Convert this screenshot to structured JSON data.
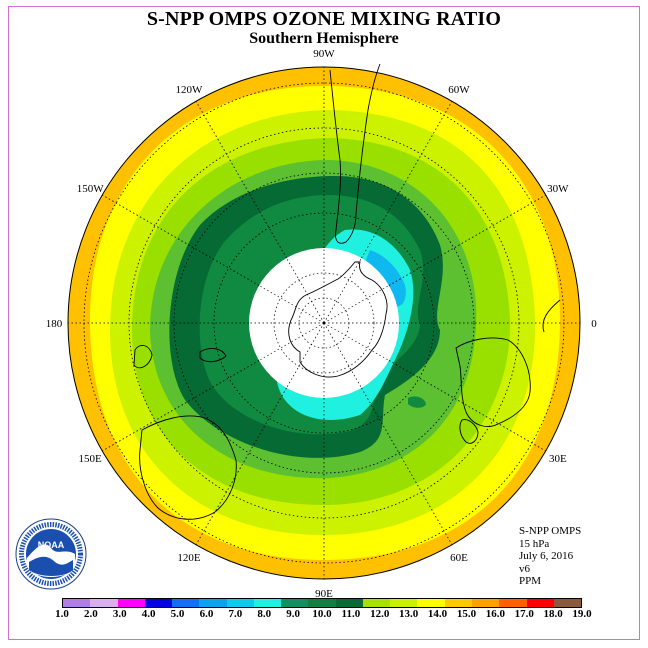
{
  "title": "S-NPP OMPS OZONE MIXING RATIO",
  "subtitle": "Southern Hemisphere",
  "info": {
    "instrument": "S-NPP OMPS",
    "pressure": "15 hPa",
    "date": "July 6, 2016",
    "version": "v6",
    "units": "PPM"
  },
  "logo": {
    "name": "NOAA",
    "icon": "noaa-logo-icon",
    "ring_text": "NATIONAL OCEANIC AND ATMOSPHERIC ADMINISTRATION · U.S. DEPARTMENT OF COMMERCE"
  },
  "longitude_labels": [
    {
      "text": "90W",
      "deg": -90
    },
    {
      "text": "60W",
      "deg": -60
    },
    {
      "text": "30W",
      "deg": -30
    },
    {
      "text": "0",
      "deg": 0
    },
    {
      "text": "30E",
      "deg": 30
    },
    {
      "text": "60E",
      "deg": 60
    },
    {
      "text": "90E",
      "deg": 90
    },
    {
      "text": "120E",
      "deg": 120
    },
    {
      "text": "150E",
      "deg": 150
    },
    {
      "text": "180",
      "deg": 180
    },
    {
      "text": "150W",
      "deg": -150
    },
    {
      "text": "120W",
      "deg": -120
    }
  ],
  "colorbar": {
    "labels": [
      "1.0",
      "2.0",
      "3.0",
      "4.0",
      "5.0",
      "6.0",
      "7.0",
      "8.0",
      "9.0",
      "10.0",
      "11.0",
      "12.0",
      "13.0",
      "14.0",
      "15.0",
      "16.0",
      "17.0",
      "18.0",
      "19.0"
    ],
    "colors": [
      "#b07de8",
      "#d8b0f0",
      "#ff00ff",
      "#0000e0",
      "#1070f0",
      "#10a0f0",
      "#10c8f0",
      "#20f0e0",
      "#109060",
      "#108040",
      "#086a34",
      "#a8e000",
      "#c8f000",
      "#ffff00",
      "#ffc800",
      "#ffa000",
      "#ff6000",
      "#ff0000",
      "#8b5a3c"
    ]
  },
  "map_colors": {
    "outer": "#ffc000",
    "band14": "#ffff00",
    "band13": "#ccf200",
    "band12": "#99e000",
    "band11": "#5cc030",
    "band10": "#108a40",
    "band9": "#066a34",
    "cyan": "#20f0e0",
    "blue": "#10b8f0",
    "pole": "#ffffff"
  }
}
